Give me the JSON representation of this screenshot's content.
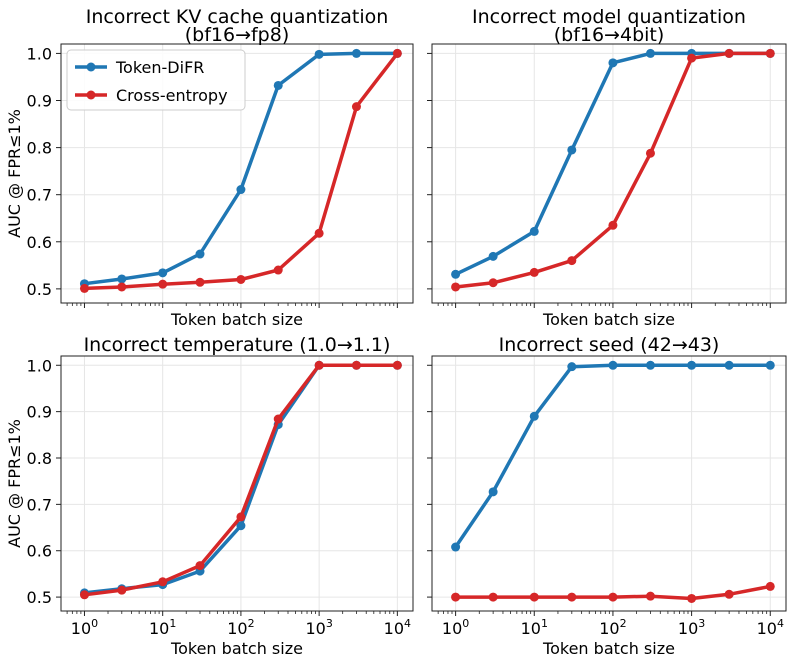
{
  "chart_data": {
    "type": "line",
    "ylabel": "AUC @ FPR≤1%",
    "xlabel": "Token batch size",
    "x": [
      1,
      3,
      10,
      30,
      100,
      300,
      1000,
      3000,
      10000
    ],
    "yticks": [
      "0.5",
      "0.6",
      "0.7",
      "0.8",
      "0.9",
      "1.0"
    ],
    "xticks": [
      {
        "base": "10",
        "exp": "0"
      },
      {
        "base": "10",
        "exp": "1"
      },
      {
        "base": "10",
        "exp": "2"
      },
      {
        "base": "10",
        "exp": "3"
      },
      {
        "base": "10",
        "exp": "4"
      }
    ],
    "ylim": [
      0.47,
      1.02
    ],
    "xlim_log10": [
      -0.3,
      4.2
    ],
    "legend": {
      "location": "top-left",
      "entries": [
        "Token-DiFR",
        "Cross-entropy"
      ]
    },
    "colors": {
      "Token-DiFR": "#1f77b4",
      "Cross-entropy": "#d62728"
    },
    "panels": [
      {
        "title_line1": "Incorrect KV cache quantization",
        "title_line2": "(bf16→fp8)",
        "series": [
          {
            "name": "Token-DiFR",
            "values": [
              0.511,
              0.521,
              0.534,
              0.574,
              0.711,
              0.932,
              0.998,
              1.0,
              1.0
            ]
          },
          {
            "name": "Cross-entropy",
            "values": [
              0.501,
              0.504,
              0.51,
              0.514,
              0.52,
              0.54,
              0.618,
              0.887,
              1.0
            ]
          }
        ]
      },
      {
        "title_line1": "Incorrect model quantization",
        "title_line2": "(bf16→4bit)",
        "series": [
          {
            "name": "Token-DiFR",
            "values": [
              0.531,
              0.569,
              0.622,
              0.795,
              0.98,
              1.0,
              1.0,
              1.0,
              1.0
            ]
          },
          {
            "name": "Cross-entropy",
            "values": [
              0.504,
              0.513,
              0.535,
              0.56,
              0.635,
              0.788,
              0.99,
              1.0,
              1.0
            ]
          }
        ]
      },
      {
        "title_line1": "Incorrect temperature (1.0→1.1)",
        "title_line2": "",
        "series": [
          {
            "name": "Token-DiFR",
            "values": [
              0.509,
              0.518,
              0.527,
              0.556,
              0.654,
              0.872,
              1.0,
              1.0,
              1.0
            ]
          },
          {
            "name": "Cross-entropy",
            "values": [
              0.505,
              0.515,
              0.533,
              0.568,
              0.673,
              0.884,
              1.0,
              1.0,
              1.0
            ]
          }
        ]
      },
      {
        "title_line1": "Incorrect seed (42→43)",
        "title_line2": "",
        "series": [
          {
            "name": "Token-DiFR",
            "values": [
              0.608,
              0.727,
              0.89,
              0.997,
              1.0,
              1.0,
              1.0,
              1.0,
              1.0
            ]
          },
          {
            "name": "Cross-entropy",
            "values": [
              0.5,
              0.5,
              0.5,
              0.5,
              0.5,
              0.502,
              0.497,
              0.506,
              0.523
            ]
          }
        ]
      }
    ]
  }
}
